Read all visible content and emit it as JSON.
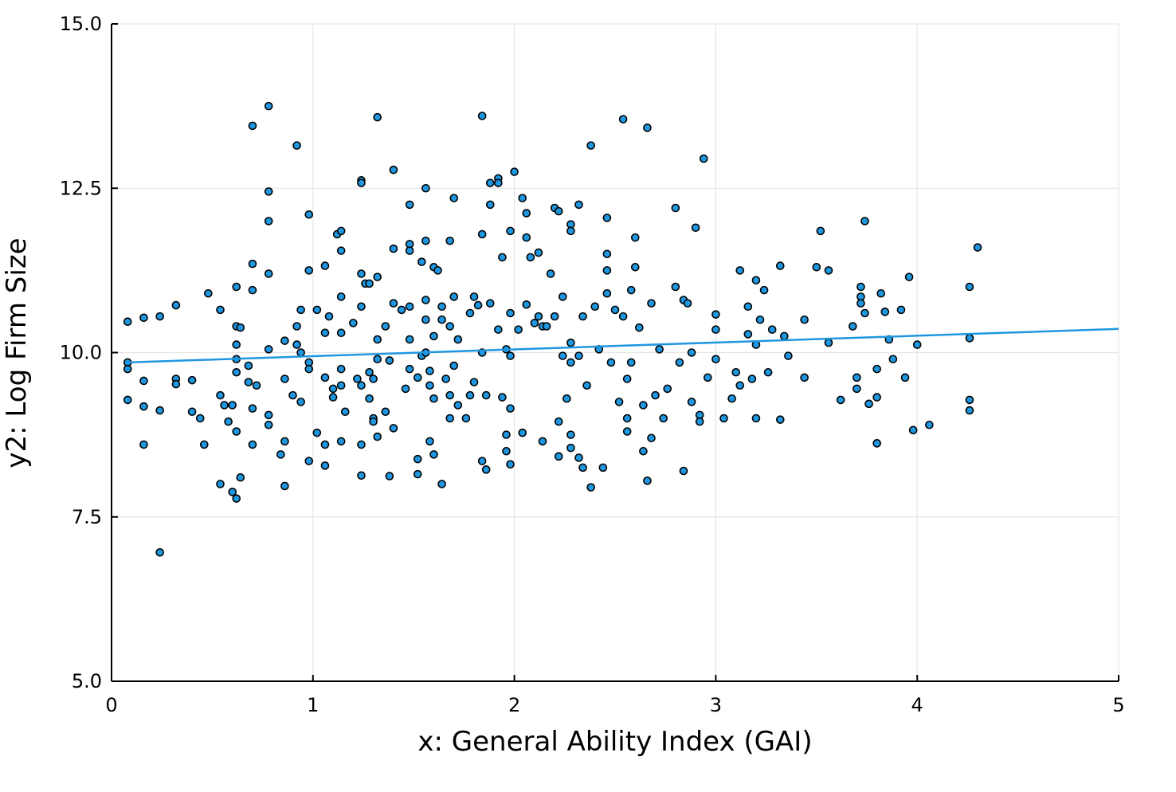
{
  "chart_data": {
    "type": "scatter",
    "xlabel": "x: General Ability Index (GAI)",
    "ylabel": "y2: Log Firm Size",
    "xlim": [
      0,
      5
    ],
    "ylim": [
      5,
      15
    ],
    "xticks": [
      0,
      1,
      2,
      3,
      4,
      5
    ],
    "yticks": [
      {
        "value": 5,
        "label": "5.0"
      },
      7.5,
      {
        "value": 10,
        "label": "10.0"
      },
      12.5,
      {
        "value": 15,
        "label": "15.0"
      }
    ],
    "grid": true,
    "series": [
      {
        "type": "scatter",
        "color": "#1f97e0",
        "edgecolor": "#000000",
        "x": [
          0.08,
          0.08,
          0.08,
          0.08,
          0.16,
          0.16,
          0.16,
          0.16,
          0.24,
          0.24,
          0.24,
          0.32,
          0.32,
          0.32,
          0.4,
          0.4,
          0.44,
          0.46,
          0.48,
          0.54,
          0.54,
          0.54,
          0.56,
          0.58,
          0.6,
          0.6,
          0.62,
          0.62,
          0.62,
          0.62,
          0.62,
          0.62,
          0.62,
          0.64,
          0.64,
          0.68,
          0.68,
          0.7,
          0.7,
          0.7,
          0.7,
          0.7,
          0.72,
          0.78,
          0.78,
          0.78,
          0.78,
          0.78,
          0.78,
          0.78,
          0.84,
          0.86,
          0.86,
          0.86,
          0.86,
          0.9,
          0.92,
          0.92,
          0.92,
          0.94,
          0.94,
          0.94,
          0.98,
          0.98,
          0.98,
          0.98,
          0.98,
          1.02,
          1.02,
          1.06,
          1.06,
          1.06,
          1.06,
          1.06,
          1.08,
          1.1,
          1.1,
          1.12,
          1.14,
          1.14,
          1.14,
          1.14,
          1.14,
          1.14,
          1.14,
          1.16,
          1.2,
          1.22,
          1.24,
          1.24,
          1.24,
          1.24,
          1.24,
          1.24,
          1.24,
          1.26,
          1.28,
          1.28,
          1.28,
          1.3,
          1.3,
          1.3,
          1.32,
          1.32,
          1.32,
          1.32,
          1.32,
          1.36,
          1.36,
          1.38,
          1.38,
          1.4,
          1.4,
          1.4,
          1.4,
          1.44,
          1.46,
          1.48,
          1.48,
          1.48,
          1.48,
          1.48,
          1.48,
          1.52,
          1.52,
          1.52,
          1.54,
          1.54,
          1.56,
          1.56,
          1.56,
          1.56,
          1.56,
          1.58,
          1.58,
          1.58,
          1.6,
          1.6,
          1.6,
          1.6,
          1.62,
          1.64,
          1.64,
          1.64,
          1.66,
          1.68,
          1.68,
          1.68,
          1.68,
          1.7,
          1.7,
          1.7,
          1.72,
          1.72,
          1.76,
          1.78,
          1.78,
          1.8,
          1.8,
          1.82,
          1.84,
          1.84,
          1.84,
          1.84,
          1.86,
          1.86,
          1.88,
          1.88,
          1.88,
          1.92,
          1.92,
          1.92,
          1.94,
          1.94,
          1.96,
          1.96,
          1.96,
          1.98,
          1.98,
          1.98,
          1.98,
          1.98,
          2.0,
          2.02,
          2.04,
          2.04,
          2.06,
          2.06,
          2.06,
          2.08,
          2.1,
          2.12,
          2.12,
          2.14,
          2.14,
          2.16,
          2.18,
          2.2,
          2.2,
          2.22,
          2.22,
          2.22,
          2.24,
          2.24,
          2.26,
          2.28,
          2.28,
          2.28,
          2.28,
          2.28,
          2.28,
          2.32,
          2.32,
          2.32,
          2.34,
          2.34,
          2.36,
          2.38,
          2.38,
          2.4,
          2.42,
          2.44,
          2.46,
          2.46,
          2.46,
          2.46,
          2.48,
          2.5,
          2.52,
          2.54,
          2.54,
          2.56,
          2.56,
          2.56,
          2.58,
          2.58,
          2.6,
          2.6,
          2.62,
          2.64,
          2.64,
          2.66,
          2.66,
          2.68,
          2.68,
          2.7,
          2.72,
          2.74,
          2.76,
          2.8,
          2.8,
          2.82,
          2.84,
          2.84,
          2.86,
          2.88,
          2.88,
          2.9,
          2.92,
          2.92,
          2.94,
          2.96,
          3.0,
          3.0,
          3.0,
          3.04,
          3.08,
          3.1,
          3.12,
          3.12,
          3.16,
          3.16,
          3.18,
          3.2,
          3.2,
          3.2,
          3.22,
          3.24,
          3.26,
          3.28,
          3.32,
          3.32,
          3.34,
          3.36,
          3.44,
          3.44,
          3.5,
          3.52,
          3.56,
          3.56,
          3.62,
          3.68,
          3.7,
          3.7,
          3.72,
          3.72,
          3.72,
          3.74,
          3.74,
          3.76,
          3.8,
          3.8,
          3.8,
          3.82,
          3.84,
          3.86,
          3.88,
          3.92,
          3.94,
          3.96,
          3.98,
          4.0,
          4.06,
          4.26,
          4.26,
          4.26,
          4.26,
          4.3
        ],
        "values": [
          10.47,
          9.85,
          9.75,
          9.28,
          10.53,
          9.57,
          9.18,
          8.6,
          10.55,
          9.12,
          6.96,
          10.72,
          9.6,
          9.52,
          9.58,
          9.1,
          9.0,
          8.6,
          10.9,
          10.65,
          9.35,
          8.0,
          9.2,
          8.95,
          9.2,
          7.88,
          11.0,
          10.4,
          10.12,
          9.9,
          9.7,
          8.8,
          7.78,
          10.38,
          8.1,
          9.8,
          9.55,
          13.45,
          11.35,
          10.95,
          9.15,
          8.6,
          9.5,
          8.9,
          9.05,
          13.75,
          12.45,
          12.0,
          11.2,
          10.05,
          8.45,
          10.18,
          9.6,
          8.65,
          7.97,
          9.35,
          13.15,
          10.4,
          10.12,
          10.65,
          10.0,
          9.25,
          12.1,
          11.25,
          9.85,
          9.75,
          8.35,
          10.65,
          8.78,
          11.32,
          10.3,
          9.62,
          8.6,
          8.28,
          10.55,
          9.45,
          9.32,
          11.8,
          11.85,
          11.55,
          10.85,
          10.3,
          9.75,
          9.5,
          8.65,
          9.1,
          10.45,
          9.6,
          12.62,
          12.58,
          11.2,
          10.7,
          9.5,
          8.6,
          8.13,
          11.05,
          11.05,
          9.7,
          9.3,
          9.6,
          9.0,
          8.95,
          13.58,
          11.15,
          10.2,
          9.9,
          8.72,
          10.4,
          9.1,
          9.88,
          8.12,
          12.78,
          11.58,
          10.75,
          8.85,
          10.65,
          9.45,
          12.25,
          11.65,
          11.55,
          10.7,
          10.2,
          9.75,
          9.62,
          8.38,
          8.15,
          11.38,
          9.95,
          12.5,
          11.7,
          10.8,
          10.5,
          10.0,
          9.72,
          9.5,
          8.65,
          11.3,
          10.25,
          9.3,
          8.45,
          11.25,
          10.7,
          10.5,
          8.0,
          9.6,
          11.7,
          10.4,
          9.35,
          9.0,
          12.35,
          10.85,
          9.8,
          10.2,
          9.2,
          9.0,
          10.6,
          9.35,
          10.85,
          9.55,
          10.72,
          13.6,
          11.8,
          10.0,
          8.35,
          9.35,
          8.22,
          12.58,
          12.25,
          10.75,
          12.65,
          12.58,
          10.35,
          11.45,
          9.32,
          10.05,
          8.75,
          8.5,
          11.85,
          10.6,
          9.95,
          9.15,
          8.3,
          12.75,
          10.35,
          12.35,
          8.78,
          12.12,
          11.75,
          10.73,
          11.45,
          10.45,
          11.52,
          10.55,
          10.4,
          8.65,
          10.4,
          11.2,
          12.2,
          10.55,
          12.15,
          8.95,
          8.42,
          10.85,
          9.95,
          9.3,
          11.95,
          11.85,
          10.15,
          9.85,
          8.75,
          8.55,
          12.25,
          9.95,
          8.4,
          10.55,
          8.25,
          9.5,
          13.15,
          7.95,
          10.7,
          10.05,
          8.25,
          12.05,
          11.5,
          11.25,
          10.9,
          9.85,
          10.65,
          9.25,
          13.55,
          10.55,
          9.6,
          9.0,
          8.8,
          10.95,
          9.85,
          11.75,
          11.3,
          10.38,
          9.2,
          8.5,
          13.42,
          8.05,
          10.75,
          8.7,
          9.35,
          10.05,
          9.0,
          9.45,
          12.2,
          11.0,
          9.85,
          10.8,
          8.2,
          10.75,
          10.0,
          9.25,
          11.9,
          9.05,
          8.95,
          12.95,
          9.62,
          10.58,
          10.35,
          9.9,
          9.0,
          9.3,
          9.7,
          11.25,
          9.5,
          10.7,
          10.28,
          9.6,
          11.1,
          10.12,
          9.0,
          10.5,
          10.95,
          9.7,
          10.35,
          11.32,
          8.98,
          10.25,
          9.95,
          10.5,
          9.62,
          11.3,
          11.85,
          11.25,
          10.15,
          9.28,
          10.4,
          9.62,
          9.45,
          11.0,
          10.85,
          10.75,
          12.0,
          10.6,
          9.22,
          9.32,
          9.75,
          8.62,
          10.9,
          10.62,
          10.2,
          9.9,
          10.65,
          9.62,
          11.15,
          8.82,
          10.12,
          8.9,
          11.0,
          10.22,
          9.28,
          9.12,
          11.6
        ]
      },
      {
        "type": "line",
        "color": "#1f97e0",
        "x": [
          0.08,
          5
        ],
        "values": [
          9.85,
          10.36
        ]
      }
    ]
  }
}
